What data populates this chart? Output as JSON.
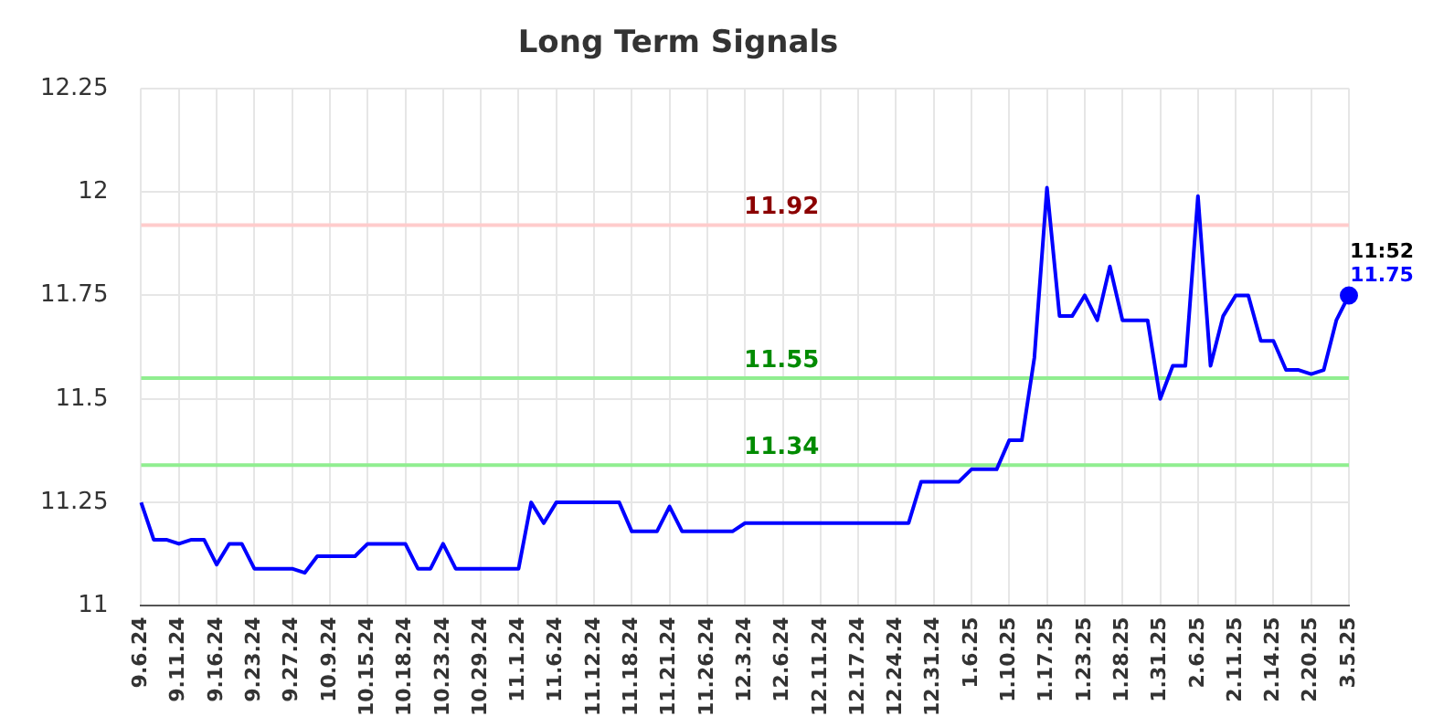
{
  "chart_data": {
    "type": "line",
    "title": "Long Term Signals",
    "categories": [
      "9.6.24",
      null,
      null,
      "9.11.24",
      null,
      null,
      "9.16.24",
      null,
      null,
      "9.23.24",
      null,
      null,
      "9.27.24",
      null,
      null,
      "10.9.24",
      null,
      null,
      "10.15.24",
      null,
      null,
      "10.18.24",
      null,
      null,
      "10.23.24",
      null,
      null,
      "10.29.24",
      null,
      null,
      "11.1.24",
      null,
      null,
      "11.6.24",
      null,
      null,
      "11.12.24",
      null,
      null,
      "11.18.24",
      null,
      null,
      "11.21.24",
      null,
      null,
      "11.26.24",
      null,
      null,
      "12.3.24",
      null,
      null,
      "12.6.24",
      null,
      null,
      "12.11.24",
      null,
      null,
      "12.17.24",
      null,
      null,
      "12.24.24",
      null,
      null,
      "12.31.24",
      null,
      null,
      "1.6.25",
      null,
      null,
      "1.10.25",
      null,
      null,
      "1.17.25",
      null,
      null,
      "1.23.25",
      null,
      null,
      "1.28.25",
      null,
      null,
      "1.31.25",
      null,
      null,
      "2.6.25",
      null,
      null,
      "2.11.25",
      null,
      null,
      "2.14.25",
      null,
      null,
      "2.20.25",
      null,
      null,
      "3.5.25"
    ],
    "series": [
      {
        "color": "#0000ff",
        "values": [
          11.25,
          11.16,
          11.16,
          11.15,
          11.16,
          11.16,
          11.1,
          11.15,
          11.15,
          11.09,
          11.09,
          11.09,
          11.09,
          11.08,
          11.12,
          11.12,
          11.12,
          11.12,
          11.15,
          11.15,
          11.15,
          11.15,
          11.09,
          11.09,
          11.15,
          11.09,
          11.09,
          11.09,
          11.09,
          11.09,
          11.09,
          11.25,
          11.2,
          11.25,
          11.25,
          11.25,
          11.25,
          11.25,
          11.25,
          11.18,
          11.18,
          11.18,
          11.24,
          11.18,
          11.18,
          11.18,
          11.18,
          11.18,
          11.2,
          11.2,
          11.2,
          11.2,
          11.2,
          11.2,
          11.2,
          11.2,
          11.2,
          11.2,
          11.2,
          11.2,
          11.2,
          11.2,
          11.3,
          11.3,
          11.3,
          11.3,
          11.33,
          11.33,
          11.33,
          11.4,
          11.4,
          11.6,
          12.01,
          11.7,
          11.7,
          11.75,
          11.69,
          11.82,
          11.69,
          11.69,
          11.69,
          11.5,
          11.58,
          11.58,
          11.99,
          11.58,
          11.7,
          11.75,
          11.75,
          11.64,
          11.64,
          11.57,
          11.57,
          11.56,
          11.57,
          11.69,
          11.75
        ],
        "value_labels": [
          null,
          null,
          null,
          null,
          null,
          null,
          null,
          null,
          null,
          null,
          null,
          null,
          null,
          null,
          null,
          null,
          null,
          null,
          null,
          null,
          null,
          null,
          null,
          null,
          null,
          null,
          null,
          null,
          null,
          null,
          null,
          null,
          null,
          null,
          null,
          null,
          null,
          null,
          null,
          null,
          null,
          null,
          null,
          null,
          null,
          null,
          null,
          null,
          null,
          null,
          null,
          null,
          null,
          null,
          null,
          null,
          null,
          null,
          null,
          null,
          null,
          null,
          null,
          null,
          null,
          null,
          null,
          null,
          null,
          null,
          null,
          null,
          null,
          null,
          null,
          null,
          null,
          null,
          null,
          null,
          null,
          null,
          null,
          null,
          null,
          null,
          null,
          null,
          null,
          null,
          null,
          null,
          null,
          null,
          null,
          null,
          "11.75"
        ]
      }
    ],
    "ylim": [
      11,
      12.25
    ],
    "yticks": [
      11,
      11.25,
      11.5,
      11.75,
      12,
      12.25
    ],
    "grid": true,
    "legend": false,
    "ref_lines": [
      {
        "axis": "y",
        "value": 11.92,
        "label": "11.92",
        "color": "#ffcccc"
      },
      {
        "axis": "y",
        "value": 11.55,
        "label": "11.55",
        "color": "#90ee90"
      },
      {
        "axis": "y",
        "value": 11.34,
        "label": "11.34",
        "color": "#90ee90"
      }
    ],
    "annotations": [
      {
        "text": "11:52",
        "x": "3.5.25",
        "y": 11.75
      }
    ]
  }
}
